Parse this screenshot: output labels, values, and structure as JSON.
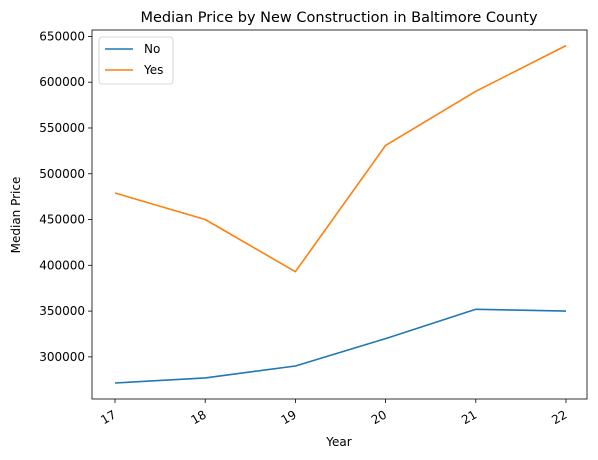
{
  "chart_data": {
    "type": "line",
    "title": "Median Price by New Construction in Baltimore County",
    "xlabel": "Year",
    "ylabel": "Median Price",
    "x": [
      "17",
      "18",
      "19",
      "20",
      "21",
      "22"
    ],
    "yticks": [
      "300000",
      "350000",
      "400000",
      "450000",
      "500000",
      "550000",
      "600000",
      "650000"
    ],
    "ylim": [
      254000,
      657000
    ],
    "grid": false,
    "legend_position": "top-left",
    "series": [
      {
        "name": "No",
        "color": "#1f77b4",
        "values": [
          271500,
          277000,
          290000,
          320000,
          352000,
          350000
        ]
      },
      {
        "name": "Yes",
        "color": "#ff7f0e",
        "values": [
          479000,
          450000,
          393000,
          531000,
          590000,
          640000
        ]
      }
    ]
  }
}
